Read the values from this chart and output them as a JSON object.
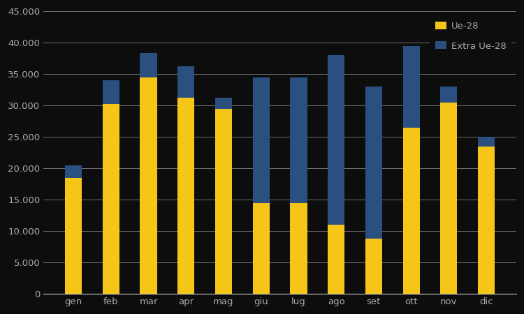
{
  "months": [
    "gen",
    "feb",
    "mar",
    "apr",
    "mag",
    "giu",
    "lug",
    "ago",
    "set",
    "ott",
    "nov",
    "dic"
  ],
  "ue28": [
    18500,
    30200,
    34500,
    31200,
    29500,
    14500,
    14500,
    11000,
    8800,
    26500,
    30500,
    23500
  ],
  "extra": [
    2000,
    3800,
    3800,
    5000,
    1700,
    20000,
    20000,
    27000,
    24200,
    13000,
    2500,
    1500
  ],
  "ue28_color": "#F5C518",
  "extra_color": "#2A5080",
  "background_color": "#0D0D0D",
  "text_color": "#AAAAAA",
  "grid_color": "#CCCCCC",
  "ylim": [
    0,
    45000
  ],
  "yticks": [
    0,
    5000,
    10000,
    15000,
    20000,
    25000,
    30000,
    35000,
    40000,
    45000
  ],
  "legend_ue28": "Ue-28",
  "legend_extra": "Extra Ue-28",
  "tick_fontsize": 9.5,
  "bar_width": 0.45
}
